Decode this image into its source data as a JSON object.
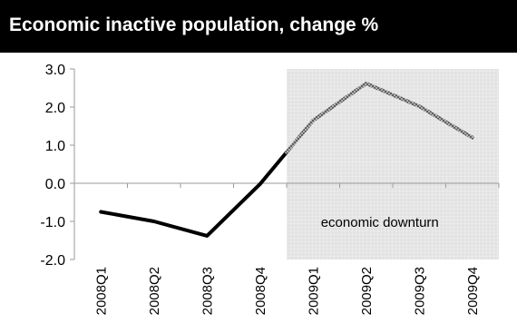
{
  "chart_data": {
    "type": "line",
    "title": "Economic inactive population, change %",
    "categories": [
      "2008Q1",
      "2008Q2",
      "2008Q3",
      "2008Q4",
      "2009Q1",
      "2009Q2",
      "2009Q3",
      "2009Q4"
    ],
    "series": [
      {
        "values": [
          -0.75,
          -1.0,
          -1.38,
          -0.02,
          1.65,
          2.62,
          2.02,
          1.2
        ]
      }
    ],
    "ylim": [
      -2.0,
      3.0
    ],
    "yticks": [
      "3.0",
      "2.0",
      "1.0",
      "0.0",
      "-1.0",
      "-2.0"
    ],
    "grid": false,
    "legend": "none",
    "annotation": {
      "label": "economic downturn",
      "from_category": "2009Q1",
      "to_category": "2009Q4"
    },
    "colors": {
      "title_bg": "#000000",
      "title_text": "#ffffff",
      "line_before": "#000000",
      "line_after": "#8c8c8c",
      "shade": "#e4e4e4"
    }
  }
}
